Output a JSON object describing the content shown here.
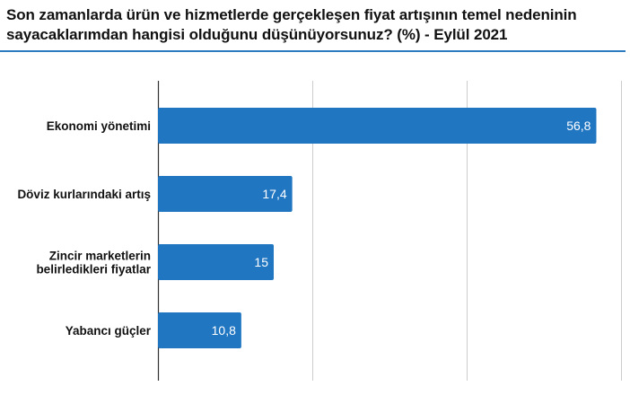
{
  "header": {
    "title_line1": "Son zamanlarda ürün ve hizmetlerde gerçekleşen fiyat artışının temel nedeninin",
    "title_line2": "sayacaklarımdan hangisi olduğunu düşünüyorsunuz? (%) - Eylül 2021"
  },
  "colors": {
    "bar": "#2176c2",
    "rule": "#2a7bbf",
    "grid": "#cccccc",
    "axis": "#333333"
  },
  "chart_data": {
    "type": "bar",
    "orientation": "horizontal",
    "title": "Son zamanlarda ürün ve hizmetlerde gerçekleşen fiyat artışının temel nedeninin sayacaklarımdan hangisi olduğunu düşünüyorsunuz? (%) - Eylül 2021",
    "categories": [
      [
        "Ekonomi yönetimi"
      ],
      [
        "Döviz kurlarındaki artış"
      ],
      [
        "Zincir marketlerin",
        "belirledikleri fiyatlar"
      ],
      [
        "Yabancı güçler"
      ]
    ],
    "values": [
      56.8,
      17.4,
      15,
      10.8
    ],
    "value_labels": [
      "56,8",
      "17,4",
      "15",
      "10,8"
    ],
    "xlim": [
      0,
      60
    ],
    "grid": true,
    "grid_values": [
      20,
      40,
      60
    ],
    "tick_labels_shown": false,
    "legend": "none"
  }
}
